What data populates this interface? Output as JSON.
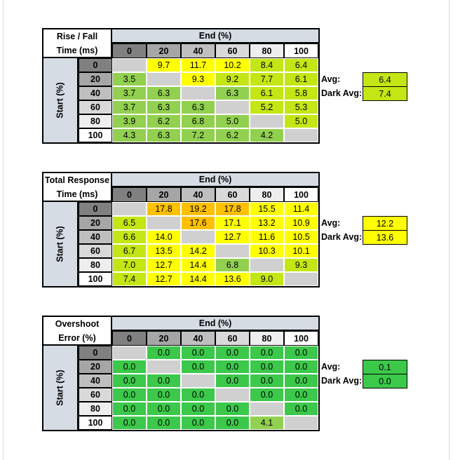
{
  "tables": [
    {
      "title_lines": [
        "Rise / Fall",
        "Time (ms)"
      ],
      "end_label": "End (%)",
      "start_label": "Start (%)",
      "columns": [
        "0",
        "20",
        "40",
        "60",
        "80",
        "100"
      ],
      "rows": [
        {
          "label": "0",
          "cells": [
            "",
            "9.7",
            "11.7",
            "10.2",
            "8.4",
            "6.4"
          ]
        },
        {
          "label": "20",
          "cells": [
            "3.5",
            "",
            "9.3",
            "9.2",
            "7.7",
            "6.1"
          ]
        },
        {
          "label": "40",
          "cells": [
            "3.7",
            "6.3",
            "",
            "6.3",
            "6.1",
            "5.8"
          ]
        },
        {
          "label": "60",
          "cells": [
            "3.7",
            "6.3",
            "6.3",
            "",
            "5.2",
            "5.3"
          ]
        },
        {
          "label": "80",
          "cells": [
            "3.9",
            "6.2",
            "6.8",
            "5.0",
            "",
            "5.0"
          ]
        },
        {
          "label": "100",
          "cells": [
            "4.3",
            "6.3",
            "7.2",
            "6.2",
            "4.2",
            ""
          ]
        }
      ],
      "colors": [
        [
          "grey",
          "yellow",
          "yellow",
          "yellow",
          "lime",
          "lime"
        ],
        [
          "green",
          "grey",
          "yellow",
          "lime",
          "lime",
          "lime"
        ],
        [
          "green",
          "green",
          "grey",
          "green",
          "lime",
          "lime"
        ],
        [
          "green",
          "green",
          "green",
          "grey",
          "lime",
          "lime"
        ],
        [
          "green",
          "green",
          "green",
          "green",
          "grey",
          "lime"
        ],
        [
          "green",
          "green",
          "green",
          "green",
          "green",
          "grey"
        ]
      ],
      "avg_label": "Avg:",
      "avg_value": "6.4",
      "avg_color": "lime",
      "dark_avg_label": "Dark Avg:",
      "dark_avg_value": "7.4",
      "dark_avg_color": "lime"
    },
    {
      "title_lines": [
        "Total Response",
        "Time (ms)"
      ],
      "end_label": "End (%)",
      "start_label": "Start (%)",
      "columns": [
        "0",
        "20",
        "40",
        "60",
        "80",
        "100"
      ],
      "rows": [
        {
          "label": "0",
          "cells": [
            "",
            "17.8",
            "19.2",
            "17.8",
            "15.5",
            "11.4"
          ]
        },
        {
          "label": "20",
          "cells": [
            "6.5",
            "",
            "17.6",
            "17.1",
            "13.2",
            "10.9"
          ]
        },
        {
          "label": "40",
          "cells": [
            "6.6",
            "14.0",
            "",
            "12.7",
            "11.6",
            "10.5"
          ]
        },
        {
          "label": "60",
          "cells": [
            "6.7",
            "13.5",
            "14.2",
            "",
            "10.3",
            "10.1"
          ]
        },
        {
          "label": "80",
          "cells": [
            "7.0",
            "12.7",
            "14.4",
            "6.8",
            "",
            "9.3"
          ]
        },
        {
          "label": "100",
          "cells": [
            "7.4",
            "12.7",
            "14.4",
            "13.6",
            "9.0",
            ""
          ]
        }
      ],
      "colors": [
        [
          "grey",
          "orange",
          "orange",
          "orange",
          "yellow",
          "yellow"
        ],
        [
          "lime",
          "grey",
          "orange",
          "yellow",
          "yellow",
          "yellow"
        ],
        [
          "lime",
          "yellow",
          "grey",
          "yellow",
          "yellow",
          "yellow"
        ],
        [
          "lime",
          "yellow",
          "yellow",
          "grey",
          "yellow",
          "yellow"
        ],
        [
          "lime",
          "yellow",
          "yellow",
          "green",
          "grey",
          "lime"
        ],
        [
          "lime",
          "yellow",
          "yellow",
          "yellow",
          "lime",
          "grey"
        ]
      ],
      "avg_label": "Avg:",
      "avg_value": "12.2",
      "avg_color": "yellow",
      "dark_avg_label": "Dark Avg:",
      "dark_avg_value": "13.6",
      "dark_avg_color": "yellow"
    },
    {
      "title_lines": [
        "Overshoot",
        "Error (%)"
      ],
      "end_label": "End (%)",
      "start_label": "Start (%)",
      "columns": [
        "0",
        "20",
        "40",
        "60",
        "80",
        "100"
      ],
      "rows": [
        {
          "label": "0",
          "cells": [
            "",
            "0.0",
            "0.0",
            "0.0",
            "0.0",
            "0.0"
          ]
        },
        {
          "label": "20",
          "cells": [
            "0.0",
            "",
            "0.0",
            "0.0",
            "0.0",
            "0.0"
          ]
        },
        {
          "label": "40",
          "cells": [
            "0.0",
            "0.0",
            "",
            "0.0",
            "0.0",
            "0.0"
          ]
        },
        {
          "label": "60",
          "cells": [
            "0.0",
            "0.0",
            "0.0",
            "",
            "0.0",
            "0.0"
          ]
        },
        {
          "label": "80",
          "cells": [
            "0.0",
            "0.0",
            "0.0",
            "0.0",
            "",
            "0.0"
          ]
        },
        {
          "label": "100",
          "cells": [
            "0.0",
            "0.0",
            "0.0",
            "0.0",
            "4.1",
            ""
          ]
        }
      ],
      "colors": [
        [
          "grey",
          "green2",
          "green2",
          "green2",
          "green2",
          "green2"
        ],
        [
          "green2",
          "grey",
          "green2",
          "green2",
          "green2",
          "green2"
        ],
        [
          "green2",
          "green2",
          "grey",
          "green2",
          "green2",
          "green2"
        ],
        [
          "green2",
          "green2",
          "green2",
          "grey",
          "green2",
          "green2"
        ],
        [
          "green2",
          "green2",
          "green2",
          "green2",
          "grey",
          "green2"
        ],
        [
          "green2",
          "green2",
          "green2",
          "green2",
          "lime2",
          "grey"
        ]
      ],
      "avg_label": "Avg:",
      "avg_value": "0.1",
      "avg_color": "green2",
      "dark_avg_label": "Dark Avg:",
      "dark_avg_value": "0.0",
      "dark_avg_color": "green2"
    }
  ],
  "palette": {
    "grey": "#d0d0d0",
    "yellow": "#ffff00",
    "orange": "#ffc000",
    "lime": "#c4e614",
    "green": "#92d050",
    "green2": "#3cc84a",
    "lime2": "#92d050"
  },
  "column_header_fills": [
    "#808080",
    "#a6a6a6",
    "#bfbfbf",
    "#d9d9d9",
    "#eeeeee",
    "#ffffff"
  ],
  "row_header_fills": [
    "#808080",
    "#a6a6a6",
    "#bfbfbf",
    "#d9d9d9",
    "#eeeeee",
    "#ffffff"
  ]
}
